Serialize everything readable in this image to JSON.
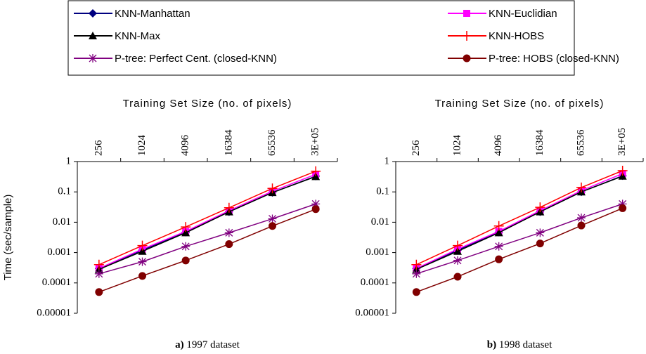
{
  "chart_data": [
    {
      "type": "line",
      "x_label": "Training Set Size (no. of pixels)",
      "y_label": "Time (sec/sample)",
      "caption_label": "a)",
      "caption": "1997 dataset",
      "categories": [
        "256",
        "1024",
        "4096",
        "16384",
        "65536",
        "3E+05"
      ],
      "log_scale": true,
      "ylim": [
        1e-05,
        1
      ],
      "yticks": [
        1e-05,
        0.0001,
        0.001,
        0.01,
        0.1,
        1
      ],
      "series": [
        {
          "name": "KNN-Manhattan",
          "color": "#000080",
          "marker": "diamond",
          "values": [
            0.0003,
            0.0012,
            0.0047,
            0.022,
            0.095,
            0.33
          ]
        },
        {
          "name": "KNN-Euclidian",
          "color": "#ff00ff",
          "marker": "square",
          "values": [
            0.0003,
            0.0013,
            0.005,
            0.024,
            0.105,
            0.38
          ]
        },
        {
          "name": "KNN-Max",
          "color": "#000000",
          "marker": "triangle",
          "values": [
            0.00028,
            0.0011,
            0.0045,
            0.022,
            0.095,
            0.32
          ]
        },
        {
          "name": "KNN-HOBS",
          "color": "#ff0000",
          "marker": "plus",
          "values": [
            0.0004,
            0.0017,
            0.007,
            0.03,
            0.13,
            0.48
          ]
        },
        {
          "name": "P-tree: Perfect Cent. (closed-KNN)",
          "color": "#800080",
          "marker": "star",
          "values": [
            0.0002,
            0.0005,
            0.0016,
            0.0045,
            0.013,
            0.04
          ]
        },
        {
          "name": "P-tree: HOBS (closed-KNN)",
          "color": "#800000",
          "marker": "circle",
          "values": [
            5e-05,
            0.00017,
            0.00055,
            0.0019,
            0.0075,
            0.027
          ]
        }
      ]
    },
    {
      "type": "line",
      "x_label": "Training Set Size (no. of pixels)",
      "caption_label": "b)",
      "caption": "1998 dataset",
      "categories": [
        "256",
        "1024",
        "4096",
        "16384",
        "65536",
        "3E+05"
      ],
      "log_scale": true,
      "ylim": [
        1e-05,
        1
      ],
      "yticks": [
        1e-05,
        0.0001,
        0.001,
        0.01,
        0.1,
        1
      ],
      "series": [
        {
          "color": "#000080",
          "marker": "diamond",
          "values": [
            0.0003,
            0.0012,
            0.0047,
            0.022,
            0.1,
            0.34
          ]
        },
        {
          "color": "#ff00ff",
          "marker": "square",
          "values": [
            0.0003,
            0.0013,
            0.005,
            0.024,
            0.11,
            0.4
          ]
        },
        {
          "color": "#000000",
          "marker": "triangle",
          "values": [
            0.00028,
            0.0011,
            0.0045,
            0.022,
            0.1,
            0.33
          ]
        },
        {
          "color": "#ff0000",
          "marker": "plus",
          "values": [
            0.0004,
            0.0017,
            0.0075,
            0.031,
            0.14,
            0.5
          ]
        },
        {
          "color": "#800080",
          "marker": "star",
          "values": [
            0.0002,
            0.00055,
            0.0016,
            0.0045,
            0.014,
            0.04
          ]
        },
        {
          "color": "#800000",
          "marker": "circle",
          "values": [
            5e-05,
            0.00016,
            0.0006,
            0.002,
            0.0078,
            0.029
          ]
        }
      ]
    }
  ]
}
